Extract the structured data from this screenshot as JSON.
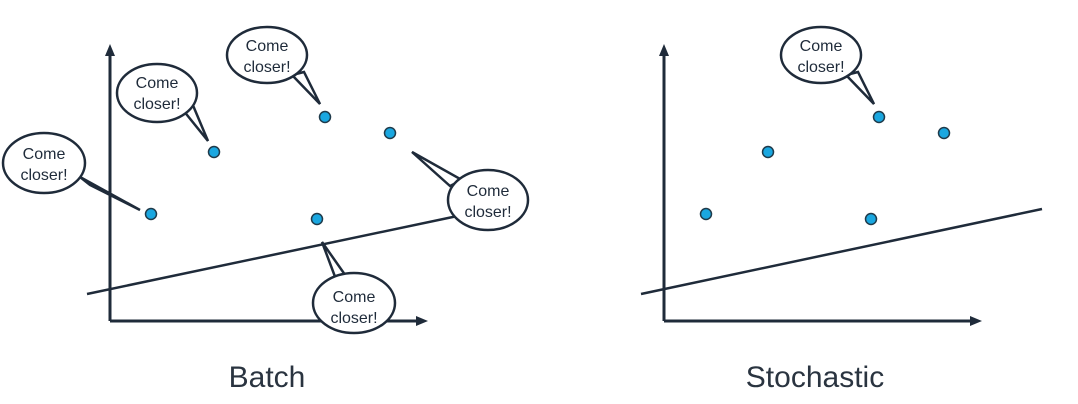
{
  "panels": [
    {
      "caption": "Batch",
      "bubbles": [
        {
          "line1": "Come",
          "line2": "closer!"
        },
        {
          "line1": "Come",
          "line2": "closer!"
        },
        {
          "line1": "Come",
          "line2": "closer!"
        },
        {
          "line1": "Come",
          "line2": "closer!"
        },
        {
          "line1": "Come",
          "line2": "closer!"
        }
      ]
    },
    {
      "caption": "Stochastic",
      "bubbles": [
        {
          "line1": "Come",
          "line2": "closer!"
        }
      ]
    }
  ],
  "colors": {
    "point": "#1aa7e0",
    "line": "#1f2b3a"
  }
}
